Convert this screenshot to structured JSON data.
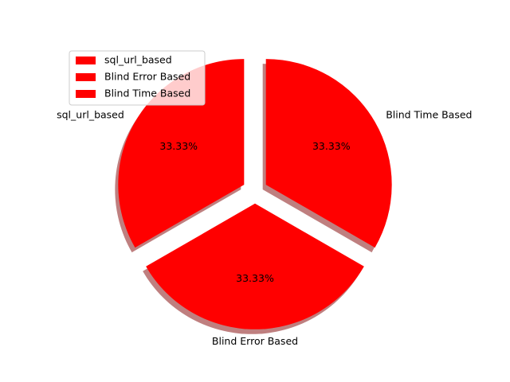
{
  "chart_data": {
    "type": "pie",
    "categories": [
      "sql_url_based",
      "Blind Error Based",
      "Blind Time Based"
    ],
    "values": [
      33.33,
      33.33,
      33.33
    ],
    "value_labels": [
      "33.33%",
      "33.33%",
      "33.33%"
    ],
    "colors": [
      "#ff0000",
      "#ff0000",
      "#ff0000"
    ],
    "exploded": true,
    "shadow": true,
    "legend": {
      "entries": [
        "sql_url_based",
        "Blind Error Based",
        "Blind Time Based"
      ],
      "placement": "upper-left"
    }
  }
}
